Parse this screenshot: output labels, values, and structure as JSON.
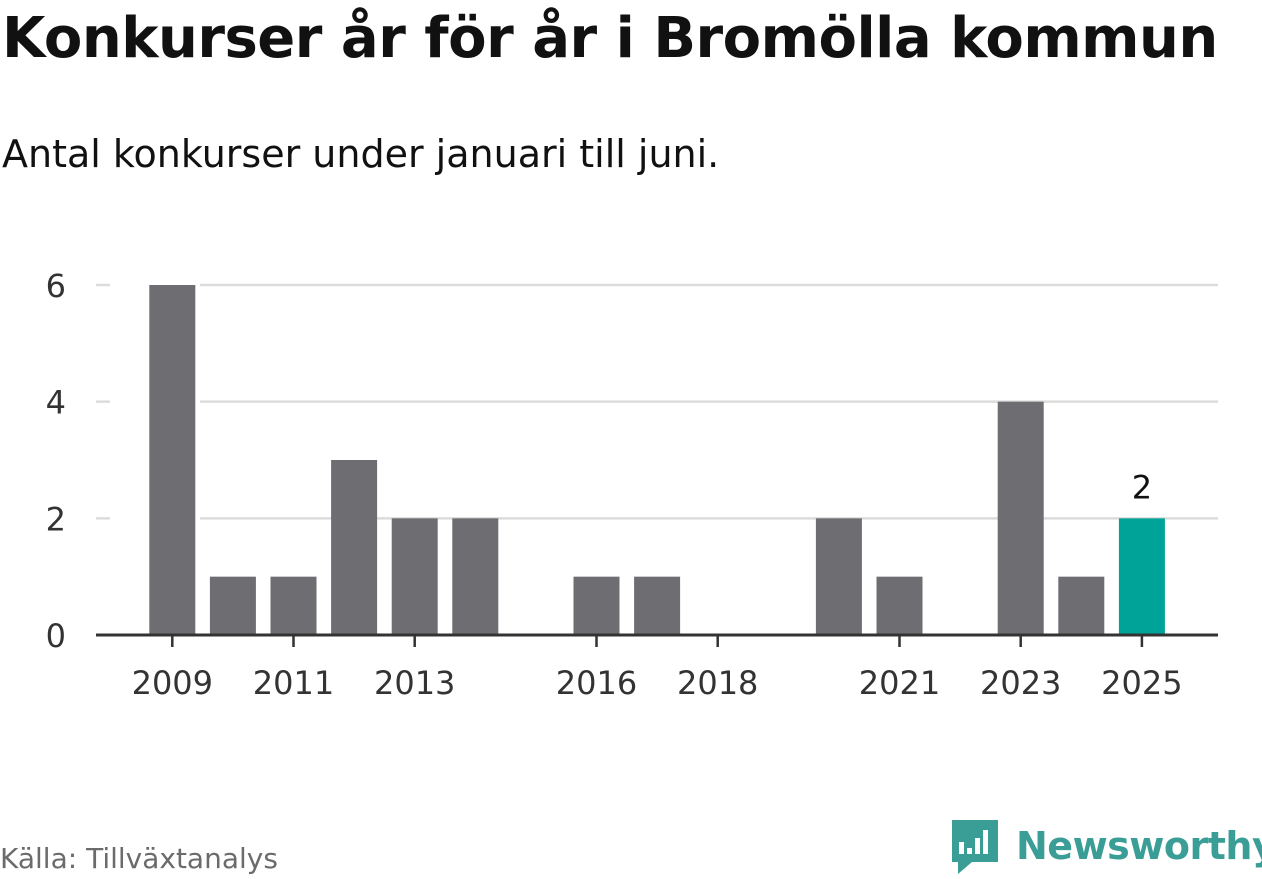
{
  "title": "Konkurser år för år i Bromölla kommun",
  "subtitle": "Antal konkurser under januari till juni.",
  "source": "Källa: Tillväxtanalys",
  "brand": {
    "name": "Newsworthy",
    "icon": "newsworthy-logo-icon",
    "color": "#3a9e97"
  },
  "chart_data": {
    "type": "bar",
    "categories": [
      "2009",
      "2010",
      "2011",
      "2012",
      "2013",
      "2014",
      "2015",
      "2016",
      "2017",
      "2018",
      "2019",
      "2020",
      "2021",
      "2022",
      "2023",
      "2024",
      "2025"
    ],
    "values": [
      6,
      1,
      1,
      3,
      2,
      2,
      0,
      1,
      1,
      0,
      0,
      2,
      1,
      0,
      4,
      1,
      2
    ],
    "x_tick_labels": [
      "2009",
      "2011",
      "2013",
      "2016",
      "2018",
      "2021",
      "2023",
      "2025"
    ],
    "y_ticks": [
      0,
      2,
      4,
      6
    ],
    "ylim": [
      0,
      6
    ],
    "grid": true,
    "bar_color": "#6e6d72",
    "highlight_color": "#00a398",
    "highlight_category": "2025",
    "data_labels": [
      {
        "category": "2025",
        "text": "2"
      }
    ]
  }
}
